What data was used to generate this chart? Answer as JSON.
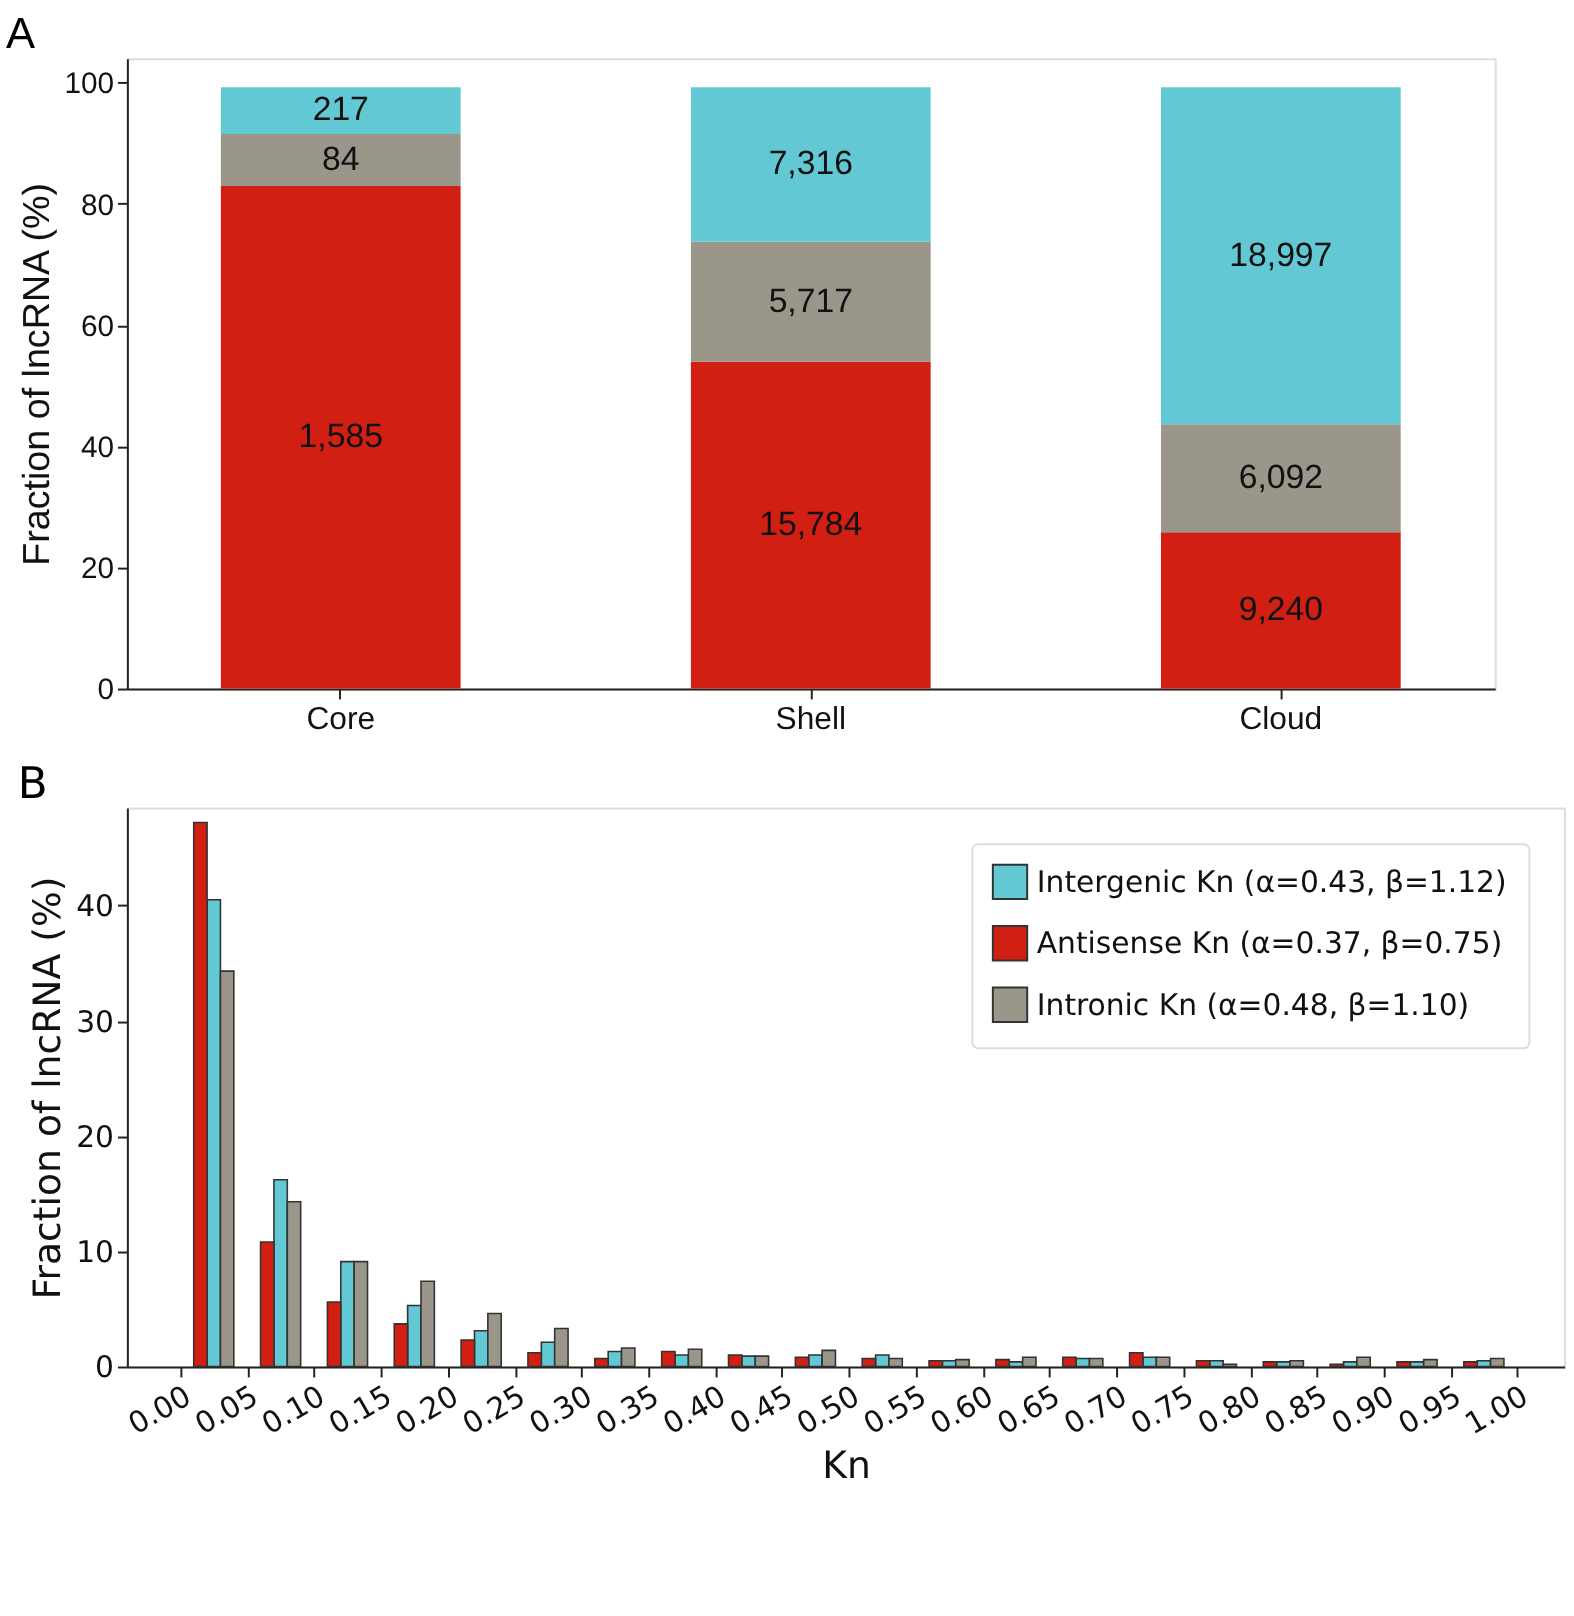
{
  "chart_data": [
    {
      "type": "bar",
      "title": "A",
      "stacked": true,
      "categories": [
        "Core",
        "Shell",
        "Cloud"
      ],
      "ylabel": "Fraction of lncRNA (%)",
      "ylim": [
        0,
        104
      ],
      "yticks": [
        0,
        20,
        40,
        60,
        80,
        100
      ],
      "grid": false,
      "series": [
        {
          "color": "#d11f14",
          "values": [
            82.9,
            53.9,
            25.8
          ]
        },
        {
          "color": "#9a968a",
          "values": [
            8.6,
            19.8,
            17.8
          ]
        },
        {
          "color": "#62c8d3",
          "values": [
            7.7,
            25.5,
            55.6
          ]
        }
      ],
      "annotations": [
        "1,585",
        "15,784",
        "9,240",
        "84",
        "5,717",
        "6,092",
        "217",
        "7,316",
        "18,997"
      ]
    },
    {
      "type": "bar",
      "title": "B",
      "xlabel": "Kn",
      "ylabel": "Fraction of lncRNA (%)",
      "xlim": [
        -0.04,
        1.035
      ],
      "ylim": [
        0,
        48.5
      ],
      "yticks": [
        0,
        10,
        20,
        30,
        40
      ],
      "grid": false,
      "legend": "top right",
      "xticks": [
        {
          "value": 0,
          "label": "0.00"
        },
        {
          "value": 0.05,
          "label": "0.05"
        },
        {
          "value": 0.1,
          "label": "0.10"
        },
        {
          "value": 0.15,
          "label": "0.15"
        },
        {
          "value": 0.2,
          "label": "0.20"
        },
        {
          "value": 0.25,
          "label": "0.25"
        },
        {
          "value": 0.3,
          "label": "0.30"
        },
        {
          "value": 0.35,
          "label": "0.35"
        },
        {
          "value": 0.4,
          "label": "0.40"
        },
        {
          "value": 0.45,
          "label": "0.45"
        },
        {
          "value": 0.5,
          "label": "0.50"
        },
        {
          "value": 0.55,
          "label": "0.55"
        },
        {
          "value": 0.6,
          "label": "0.60"
        },
        {
          "value": 0.65,
          "label": "0.65"
        },
        {
          "value": 0.7,
          "label": "0.70"
        },
        {
          "value": 0.75,
          "label": "0.75"
        },
        {
          "value": 0.8,
          "label": "0.80"
        },
        {
          "value": 0.85,
          "label": "0.85"
        },
        {
          "value": 0.9,
          "label": "0.90"
        },
        {
          "value": 0.95,
          "label": "0.95"
        },
        {
          "value": 1,
          "label": "1.00"
        }
      ],
      "series": [
        {
          "name": "Intergenic Kn (α=0.43, β=1.12)",
          "color": "#62c8d3",
          "x": [
            0.025,
            0.075,
            0.125,
            0.175,
            0.225,
            0.275,
            0.325,
            0.375,
            0.425,
            0.475,
            0.525,
            0.575,
            0.625,
            0.675,
            0.725,
            0.775,
            0.825,
            0.875,
            0.925,
            0.975
          ],
          "values": [
            40.5,
            16.2,
            9.1,
            5.3,
            3.1,
            2.1,
            1.3,
            1.0,
            0.9,
            1.0,
            1.0,
            0.5,
            0.4,
            0.7,
            0.8,
            0.5,
            0.4,
            0.4,
            0.4,
            0.5
          ]
        },
        {
          "name": "Antisense Kn (α=0.37, β=0.75)",
          "color": "#d11f14",
          "x": [
            0.015,
            0.065,
            0.115,
            0.165,
            0.215,
            0.265,
            0.315,
            0.365,
            0.415,
            0.465,
            0.515,
            0.565,
            0.615,
            0.665,
            0.715,
            0.765,
            0.815,
            0.865,
            0.915,
            0.965
          ],
          "values": [
            47.2,
            10.8,
            5.6,
            3.7,
            2.3,
            1.2,
            0.7,
            1.3,
            1.0,
            0.8,
            0.7,
            0.5,
            0.6,
            0.8,
            1.2,
            0.5,
            0.4,
            0.2,
            0.4,
            0.4
          ]
        },
        {
          "name": "Intronic Kn (α=0.48, β=1.10)",
          "color": "#9a968a",
          "x": [
            0.035,
            0.085,
            0.135,
            0.185,
            0.235,
            0.285,
            0.335,
            0.385,
            0.435,
            0.485,
            0.535,
            0.585,
            0.635,
            0.685,
            0.735,
            0.785,
            0.835,
            0.885,
            0.935,
            0.985
          ],
          "values": [
            34.3,
            14.3,
            9.1,
            7.4,
            4.6,
            3.3,
            1.6,
            1.5,
            0.9,
            1.4,
            0.7,
            0.6,
            0.8,
            0.7,
            0.8,
            0.2,
            0.5,
            0.8,
            0.6,
            0.7
          ]
        }
      ]
    }
  ]
}
